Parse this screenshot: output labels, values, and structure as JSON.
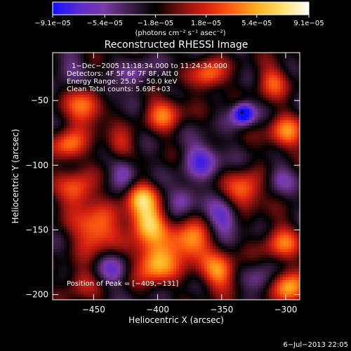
{
  "chart_data": {
    "type": "heatmap",
    "title": "Reconstructed RHESSI Image",
    "xlabel": "Heliocentric X (arcsec)",
    "ylabel": "Heliocentric Y (arcsec)",
    "xlim": [
      -482,
      -289
    ],
    "ylim": [
      -204,
      -13
    ],
    "xticks": [
      -450,
      -400,
      -350,
      -300
    ],
    "xtick_labels": [
      "−450",
      "−400",
      "−350",
      "−300"
    ],
    "yticks": [
      -50,
      -100,
      -150,
      -200
    ],
    "ytick_labels": [
      "−50",
      "−100",
      "−150",
      "−200"
    ],
    "colorbar": {
      "ticks": [
        -9.1e-05,
        -5.4e-05,
        -1.8e-05,
        1.8e-05,
        5.4e-05,
        9.1e-05
      ],
      "tick_labels": [
        "−9.1e−05",
        "−5.4e−05",
        "−1.8e−05",
        "1.8e−05",
        "5.4e−05",
        "9.1e−05"
      ],
      "unit_label": "(photons cm⁻² s⁻¹ asec⁻²)",
      "range": [
        -9.1e-05,
        9.1e-05
      ],
      "colormap": [
        "#1010ff",
        "#5a2ad0",
        "#7a3aa8",
        "#40204a",
        "#000000",
        "#7a1010",
        "#d82010",
        "#ff6010",
        "#ffb020",
        "#ffe070",
        "#ffffff"
      ]
    },
    "info": [
      "1−Dec−2005 11:18:34.000 to 11:24:34.000",
      "Detectors: 4F 5F 6F 7F 8F, Att 0",
      "Energy Range: 25.0 − 50.0 keV",
      "Clean     Total counts: 5.69E+03"
    ],
    "peak_label": "Position of Peak = [−409,−131]",
    "peak_position": [
      -409,
      -131
    ],
    "marked_min": [
      -334,
      -59
    ],
    "blobs": [
      {
        "x": -408,
        "y": -145,
        "v": 9e-05,
        "s": 10
      },
      {
        "x": -402,
        "y": -175,
        "v": 8.5e-05,
        "s": 11
      },
      {
        "x": -413,
        "y": -125,
        "v": 7e-05,
        "s": 9
      },
      {
        "x": -375,
        "y": -160,
        "v": 7.5e-05,
        "s": 11
      },
      {
        "x": -352,
        "y": -183,
        "v": 6.5e-05,
        "s": 10
      },
      {
        "x": -448,
        "y": -150,
        "v": 7e-05,
        "s": 12
      },
      {
        "x": -463,
        "y": -120,
        "v": 6e-05,
        "s": 10
      },
      {
        "x": -470,
        "y": -85,
        "v": 6e-05,
        "s": 9
      },
      {
        "x": -455,
        "y": -55,
        "v": 6.5e-05,
        "s": 11
      },
      {
        "x": -430,
        "y": -85,
        "v": 4e-05,
        "s": 8
      },
      {
        "x": -395,
        "y": -60,
        "v": 5.5e-05,
        "s": 10
      },
      {
        "x": -360,
        "y": -30,
        "v": 6e-05,
        "s": 9
      },
      {
        "x": -310,
        "y": -35,
        "v": 5e-05,
        "s": 9
      },
      {
        "x": -300,
        "y": -75,
        "v": 6e-05,
        "s": 10
      },
      {
        "x": -332,
        "y": -120,
        "v": 6.5e-05,
        "s": 10
      },
      {
        "x": -303,
        "y": -160,
        "v": 5.5e-05,
        "s": 10
      },
      {
        "x": -298,
        "y": -196,
        "v": 8e-05,
        "s": 9
      },
      {
        "x": -460,
        "y": -190,
        "v": 3.5e-05,
        "s": 9
      },
      {
        "x": -425,
        "y": -105,
        "v": -4e-05,
        "s": 8
      },
      {
        "x": -365,
        "y": -95,
        "v": -5e-05,
        "s": 10
      },
      {
        "x": -333,
        "y": -60,
        "v": -9.1e-05,
        "s": 6
      },
      {
        "x": -348,
        "y": -140,
        "v": -5e-05,
        "s": 9
      },
      {
        "x": -435,
        "y": -180,
        "v": -3.5e-05,
        "s": 9
      },
      {
        "x": -440,
        "y": -45,
        "v": -3.5e-05,
        "s": 8
      },
      {
        "x": -380,
        "y": -125,
        "v": -4e-05,
        "s": 8
      },
      {
        "x": -320,
        "y": -190,
        "v": -3.5e-05,
        "s": 8
      },
      {
        "x": -470,
        "y": -25,
        "v": -3e-05,
        "s": 8
      },
      {
        "x": -305,
        "y": -110,
        "v": -3e-05,
        "s": 8
      },
      {
        "x": -415,
        "y": -30,
        "v": -3e-05,
        "s": 8
      }
    ]
  },
  "timestamp": "6−Jul−2013 22:05"
}
